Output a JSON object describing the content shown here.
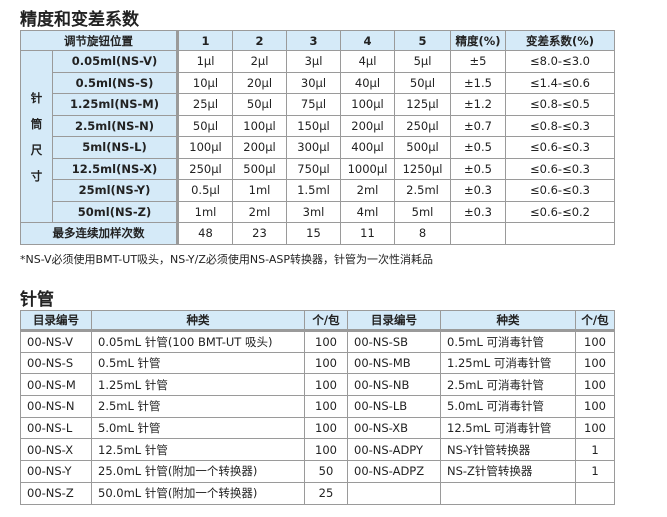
{
  "section1": {
    "title": "精度和变差系数",
    "header": [
      "调节旋钮位置",
      "1",
      "2",
      "3",
      "4",
      "5",
      "精度(%)",
      "变差系数(%)"
    ],
    "side_label": [
      "针",
      "筒",
      "尺",
      "寸"
    ],
    "rows": [
      [
        "0.05ml(NS-V)",
        "1μl",
        "2μl",
        "3μl",
        "4μl",
        "5μl",
        "±5",
        "≤8.0-≤3.0"
      ],
      [
        "0.5ml(NS-S)",
        "10μl",
        "20μl",
        "30μl",
        "40μl",
        "50μl",
        "±1.5",
        "≤1.4-≤0.6"
      ],
      [
        "1.25ml(NS-M)",
        "25μl",
        "50μl",
        "75μl",
        "100μl",
        "125μl",
        "±1.2",
        "≤0.8-≤0.5"
      ],
      [
        "2.5ml(NS-N)",
        "50μl",
        "100μl",
        "150μl",
        "200μl",
        "250μl",
        "±0.7",
        "≤0.8-≤0.3"
      ],
      [
        "5ml(NS-L)",
        "100μl",
        "200μl",
        "300μl",
        "400μl",
        "500μl",
        "±0.5",
        "≤0.6-≤0.3"
      ],
      [
        "12.5ml(NS-X)",
        "250μl",
        "500μl",
        "750μl",
        "1000μl",
        "1250μl",
        "±0.5",
        "≤0.6-≤0.3"
      ],
      [
        "25ml(NS-Y)",
        "0.5μl",
        "1ml",
        "1.5ml",
        "2ml",
        "2.5ml",
        "±0.3",
        "≤0.6-≤0.3"
      ],
      [
        "50ml(NS-Z)",
        "1ml",
        "2ml",
        "3ml",
        "4ml",
        "5ml",
        "±0.3",
        "≤0.6-≤0.2"
      ]
    ],
    "footer": [
      "最多连续加样次数",
      "48",
      "23",
      "15",
      "11",
      "8",
      "",
      ""
    ],
    "note": "*NS-V必须使用BMT-UT吸头，NS-Y/Z必须使用NS-ASP转换器，针管为一次性消耗品"
  },
  "section2": {
    "title": "针管",
    "header": [
      "目录编号",
      "种类",
      "个/包",
      "目录编号",
      "种类",
      "个/包"
    ],
    "rows": [
      [
        "00-NS-V",
        "0.05mL 针管(100 BMT-UT 吸头)",
        "100",
        "00-NS-SB",
        "0.5mL 可消毒针管",
        "100"
      ],
      [
        "00-NS-S",
        "0.5mL 针管",
        "100",
        "00-NS-MB",
        "1.25mL 可消毒针管",
        "100"
      ],
      [
        "00-NS-M",
        "1.25mL 针管",
        "100",
        "00-NS-NB",
        "2.5mL 可消毒针管",
        "100"
      ],
      [
        "00-NS-N",
        "2.5mL 针管",
        "100",
        "00-NS-LB",
        "5.0mL 可消毒针管",
        "100"
      ],
      [
        "00-NS-L",
        "5.0mL 针管",
        "100",
        "00-NS-XB",
        "12.5mL 可消毒针管",
        "100"
      ],
      [
        "00-NS-X",
        "12.5mL 针管",
        "100",
        "00-NS-ADPY",
        "NS-Y针管转换器",
        "1"
      ],
      [
        "00-NS-Y",
        "25.0mL 针管(附加一个转换器)",
        "50",
        "00-NS-ADPZ",
        "NS-Z针管转换器",
        "1"
      ],
      [
        "00-NS-Z",
        "50.0mL 针管(附加一个转换器)",
        "25",
        "",
        "",
        ""
      ]
    ]
  },
  "colors": {
    "header_bg": "#d5eaf8",
    "border": "#9a9a9a"
  }
}
